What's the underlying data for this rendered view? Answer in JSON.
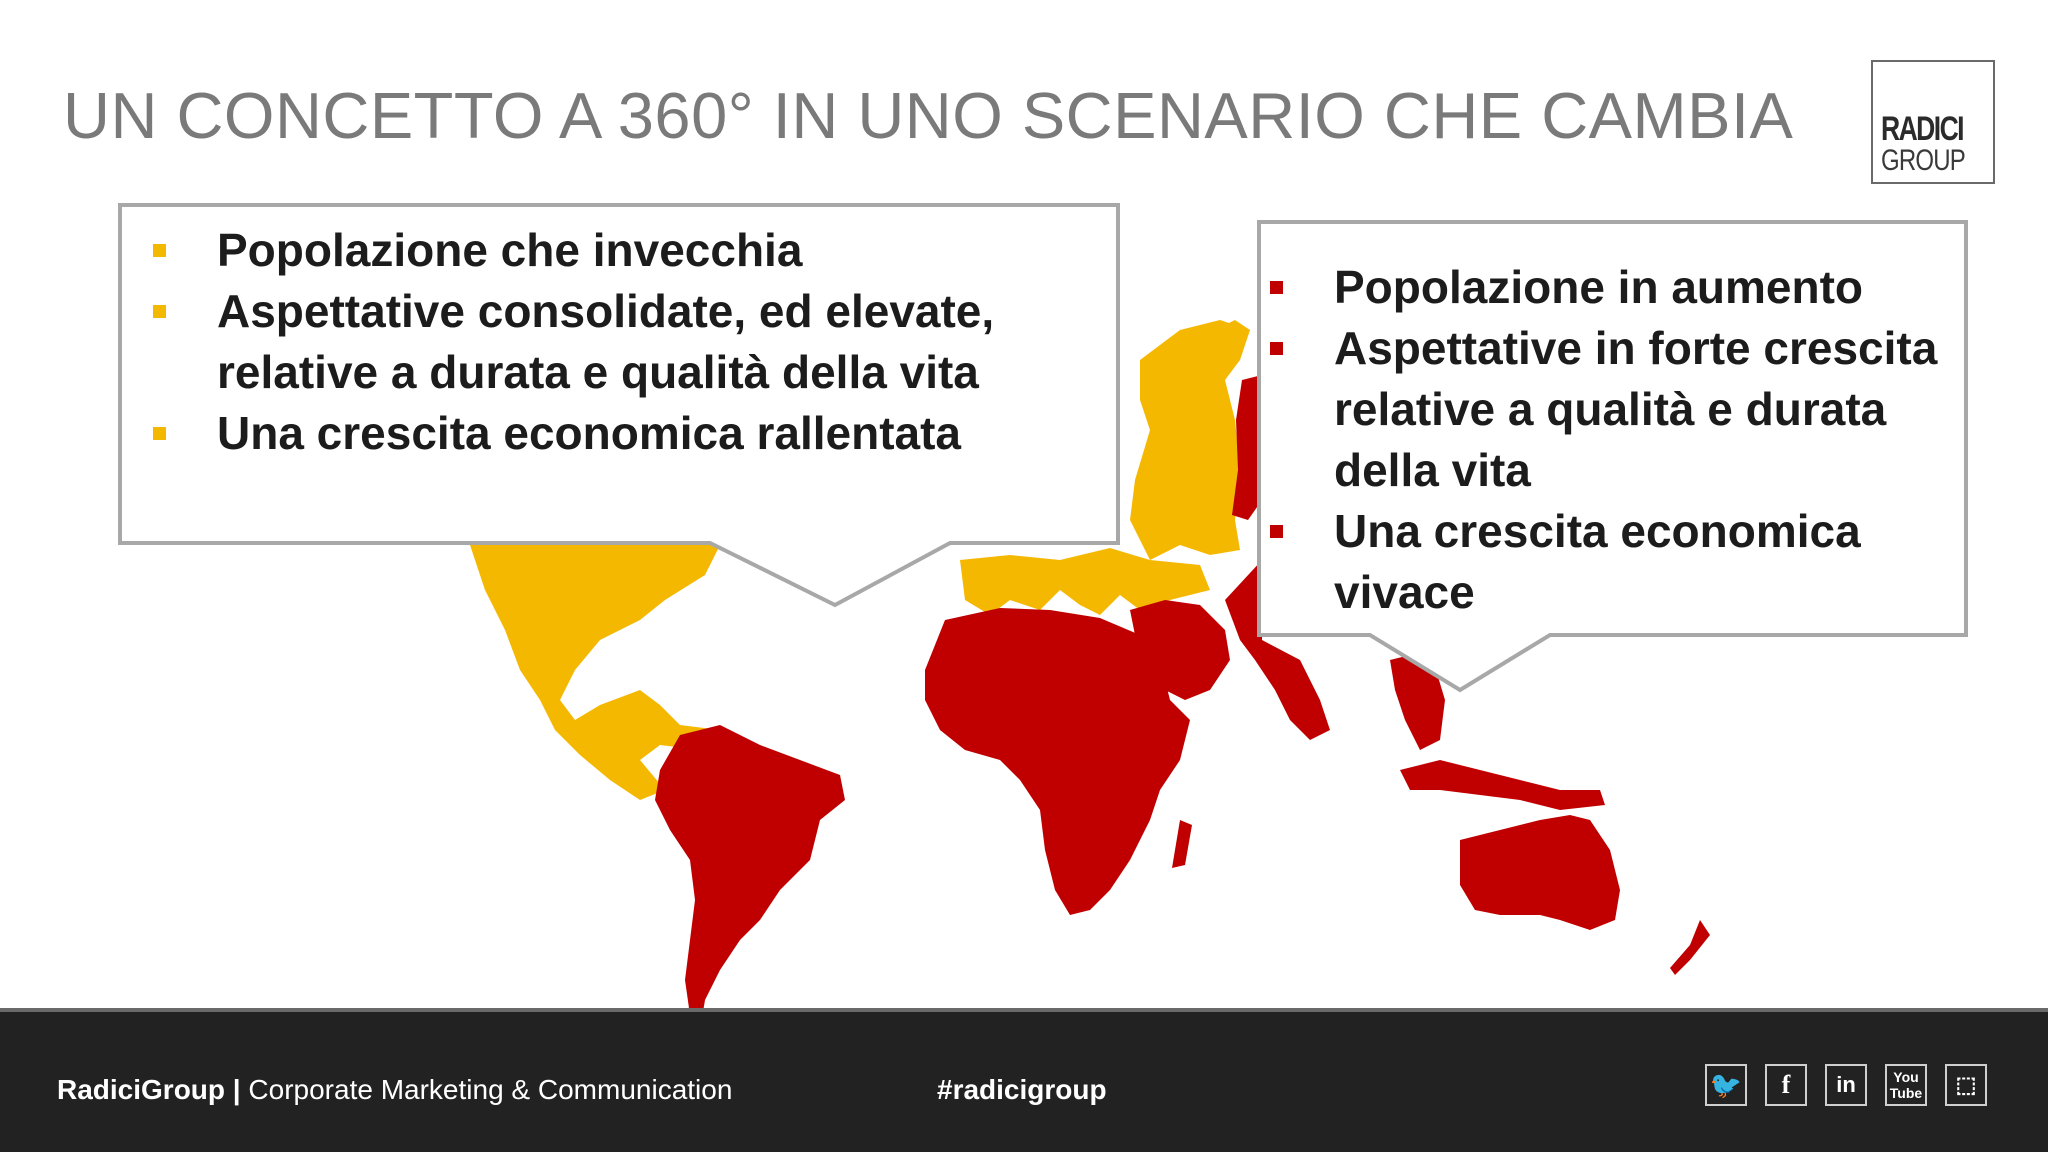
{
  "title": "UN CONCETTO A 360° IN UNO SCENARIO CHE CAMBIA",
  "logo": {
    "line1": "RADICI",
    "line2": "GROUP"
  },
  "colors": {
    "aging": "#f5b800",
    "growing": "#c00000",
    "footer_bg": "#222222",
    "title": "#7a7a7a"
  },
  "left_callout": {
    "items": [
      "Popolazione che invecchia",
      "Aspettative  consolidate, ed elevate, relative a durata e qualità della vita",
      "Una crescita economica rallentata"
    ]
  },
  "right_callout": {
    "items": [
      "Popolazione in aumento",
      "Aspettative in forte crescita relative a qualità e durata della vita",
      "Una crescita economica vivace"
    ]
  },
  "footer": {
    "brand": "RadiciGroup |",
    "department": " Corporate Marketing & Communication",
    "hashtag": "#radicigroup",
    "social_icons": [
      "twitter-icon",
      "facebook-icon",
      "linkedin-icon",
      "youtube-icon",
      "slideshare-icon"
    ],
    "social_glyphs": [
      "🐦",
      "f",
      "in",
      "You Tube",
      "⬚"
    ]
  }
}
